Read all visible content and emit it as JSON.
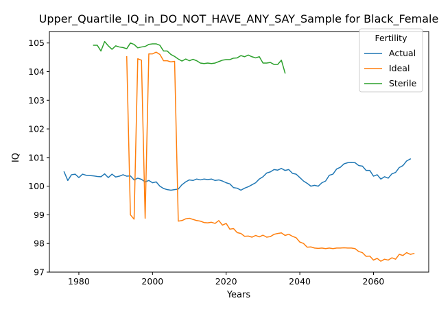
{
  "chart_data": {
    "type": "line",
    "title": "Upper_Quartile_IQ_in_DO_NOT_HAVE_ANY_SAY_Sample for Black_Female",
    "xlabel": "Years",
    "ylabel": "IQ",
    "xlim": [
      1972,
      2075
    ],
    "ylim": [
      97,
      105.4
    ],
    "xticks": [
      1980,
      2000,
      2020,
      2040,
      2060
    ],
    "yticks": [
      97,
      98,
      99,
      100,
      101,
      102,
      103,
      104,
      105
    ],
    "grid": false,
    "legend": {
      "title": "Fertility",
      "placement": "top-right"
    },
    "series": [
      {
        "name": "Actual",
        "color": "#1f77b4",
        "points": [
          [
            1976,
            100.5
          ],
          [
            1977,
            100.2
          ],
          [
            1978,
            100.4
          ],
          [
            1979,
            100.42
          ],
          [
            1980,
            100.3
          ],
          [
            1981,
            100.42
          ],
          [
            1982,
            100.38
          ],
          [
            1983,
            100.37
          ],
          [
            1984,
            100.36
          ],
          [
            1985,
            100.34
          ],
          [
            1986,
            100.33
          ],
          [
            1987,
            100.43
          ],
          [
            1988,
            100.3
          ],
          [
            1989,
            100.42
          ],
          [
            1990,
            100.32
          ],
          [
            1991,
            100.35
          ],
          [
            1992,
            100.4
          ],
          [
            1993,
            100.35
          ],
          [
            1994,
            100.36
          ],
          [
            1995,
            100.22
          ],
          [
            1996,
            100.28
          ],
          [
            1997,
            100.24
          ],
          [
            1998,
            100.15
          ],
          [
            1999,
            100.2
          ],
          [
            2000,
            100.12
          ],
          [
            2001,
            100.15
          ],
          [
            2002,
            100.0
          ],
          [
            2003,
            99.92
          ],
          [
            2004,
            99.88
          ],
          [
            2005,
            99.86
          ],
          [
            2006,
            99.88
          ],
          [
            2007,
            99.9
          ],
          [
            2008,
            100.05
          ],
          [
            2009,
            100.15
          ],
          [
            2010,
            100.22
          ],
          [
            2011,
            100.2
          ],
          [
            2012,
            100.25
          ],
          [
            2013,
            100.22
          ],
          [
            2014,
            100.25
          ],
          [
            2015,
            100.23
          ],
          [
            2016,
            100.25
          ],
          [
            2017,
            100.2
          ],
          [
            2018,
            100.22
          ],
          [
            2019,
            100.18
          ],
          [
            2020,
            100.12
          ],
          [
            2021,
            100.08
          ],
          [
            2022,
            99.95
          ],
          [
            2023,
            99.93
          ],
          [
            2024,
            99.86
          ],
          [
            2025,
            99.93
          ],
          [
            2026,
            99.98
          ],
          [
            2027,
            100.05
          ],
          [
            2028,
            100.12
          ],
          [
            2029,
            100.25
          ],
          [
            2030,
            100.33
          ],
          [
            2031,
            100.46
          ],
          [
            2032,
            100.5
          ],
          [
            2033,
            100.58
          ],
          [
            2034,
            100.56
          ],
          [
            2035,
            100.62
          ],
          [
            2036,
            100.55
          ],
          [
            2037,
            100.58
          ],
          [
            2038,
            100.45
          ],
          [
            2039,
            100.42
          ],
          [
            2040,
            100.3
          ],
          [
            2041,
            100.18
          ],
          [
            2042,
            100.1
          ],
          [
            2043,
            100.0
          ],
          [
            2044,
            100.03
          ],
          [
            2045,
            100.0
          ],
          [
            2046,
            100.12
          ],
          [
            2047,
            100.18
          ],
          [
            2048,
            100.38
          ],
          [
            2049,
            100.42
          ],
          [
            2050,
            100.6
          ],
          [
            2051,
            100.66
          ],
          [
            2052,
            100.78
          ],
          [
            2053,
            100.82
          ],
          [
            2054,
            100.83
          ],
          [
            2055,
            100.82
          ],
          [
            2056,
            100.72
          ],
          [
            2057,
            100.7
          ],
          [
            2058,
            100.55
          ],
          [
            2059,
            100.55
          ],
          [
            2060,
            100.35
          ],
          [
            2061,
            100.4
          ],
          [
            2062,
            100.25
          ],
          [
            2063,
            100.33
          ],
          [
            2064,
            100.28
          ],
          [
            2065,
            100.43
          ],
          [
            2066,
            100.48
          ],
          [
            2067,
            100.65
          ],
          [
            2068,
            100.72
          ],
          [
            2069,
            100.88
          ],
          [
            2070,
            100.95
          ]
        ]
      },
      {
        "name": "Ideal",
        "color": "#ff7f0e",
        "points": [
          [
            1993,
            104.52
          ],
          [
            1994,
            99.0
          ],
          [
            1995,
            98.85
          ],
          [
            1996,
            104.45
          ],
          [
            1997,
            104.4
          ],
          [
            1998,
            98.88
          ],
          [
            1999,
            104.62
          ],
          [
            2000,
            104.62
          ],
          [
            2001,
            104.68
          ],
          [
            2002,
            104.6
          ],
          [
            2003,
            104.38
          ],
          [
            2004,
            104.38
          ],
          [
            2005,
            104.34
          ],
          [
            2006,
            104.36
          ],
          [
            2007,
            98.78
          ],
          [
            2008,
            98.8
          ],
          [
            2009,
            98.86
          ],
          [
            2010,
            98.88
          ],
          [
            2011,
            98.84
          ],
          [
            2012,
            98.8
          ],
          [
            2013,
            98.78
          ],
          [
            2014,
            98.73
          ],
          [
            2015,
            98.72
          ],
          [
            2016,
            98.74
          ],
          [
            2017,
            98.7
          ],
          [
            2018,
            98.8
          ],
          [
            2019,
            98.64
          ],
          [
            2020,
            98.7
          ],
          [
            2021,
            98.5
          ],
          [
            2022,
            98.52
          ],
          [
            2023,
            98.38
          ],
          [
            2024,
            98.35
          ],
          [
            2025,
            98.25
          ],
          [
            2026,
            98.26
          ],
          [
            2027,
            98.22
          ],
          [
            2028,
            98.28
          ],
          [
            2029,
            98.23
          ],
          [
            2030,
            98.29
          ],
          [
            2031,
            98.22
          ],
          [
            2032,
            98.24
          ],
          [
            2033,
            98.32
          ],
          [
            2034,
            98.35
          ],
          [
            2035,
            98.37
          ],
          [
            2036,
            98.28
          ],
          [
            2037,
            98.32
          ],
          [
            2038,
            98.25
          ],
          [
            2039,
            98.2
          ],
          [
            2040,
            98.05
          ],
          [
            2041,
            98.0
          ],
          [
            2042,
            97.87
          ],
          [
            2043,
            97.88
          ],
          [
            2044,
            97.84
          ],
          [
            2045,
            97.83
          ],
          [
            2046,
            97.84
          ],
          [
            2047,
            97.82
          ],
          [
            2048,
            97.84
          ],
          [
            2049,
            97.82
          ],
          [
            2050,
            97.84
          ],
          [
            2051,
            97.84
          ],
          [
            2052,
            97.85
          ],
          [
            2053,
            97.84
          ],
          [
            2054,
            97.84
          ],
          [
            2055,
            97.82
          ],
          [
            2056,
            97.72
          ],
          [
            2057,
            97.68
          ],
          [
            2058,
            97.55
          ],
          [
            2059,
            97.56
          ],
          [
            2060,
            97.42
          ],
          [
            2061,
            97.48
          ],
          [
            2062,
            97.38
          ],
          [
            2063,
            97.45
          ],
          [
            2064,
            97.42
          ],
          [
            2065,
            97.5
          ],
          [
            2066,
            97.45
          ],
          [
            2067,
            97.62
          ],
          [
            2068,
            97.58
          ],
          [
            2069,
            97.68
          ],
          [
            2070,
            97.62
          ],
          [
            2071,
            97.65
          ]
        ]
      },
      {
        "name": "Sterile",
        "color": "#2ca02c",
        "points": [
          [
            1984,
            104.92
          ],
          [
            1985,
            104.92
          ],
          [
            1986,
            104.72
          ],
          [
            1987,
            105.05
          ],
          [
            1988,
            104.9
          ],
          [
            1989,
            104.78
          ],
          [
            1990,
            104.9
          ],
          [
            1991,
            104.86
          ],
          [
            1992,
            104.84
          ],
          [
            1993,
            104.8
          ],
          [
            1994,
            105.0
          ],
          [
            1995,
            104.95
          ],
          [
            1996,
            104.83
          ],
          [
            1997,
            104.86
          ],
          [
            1998,
            104.88
          ],
          [
            1999,
            104.95
          ],
          [
            2000,
            104.97
          ],
          [
            2001,
            104.97
          ],
          [
            2002,
            104.92
          ],
          [
            2003,
            104.72
          ],
          [
            2004,
            104.72
          ],
          [
            2005,
            104.6
          ],
          [
            2006,
            104.53
          ],
          [
            2007,
            104.44
          ],
          [
            2008,
            104.37
          ],
          [
            2009,
            104.44
          ],
          [
            2010,
            104.38
          ],
          [
            2011,
            104.43
          ],
          [
            2012,
            104.38
          ],
          [
            2013,
            104.3
          ],
          [
            2014,
            104.28
          ],
          [
            2015,
            104.3
          ],
          [
            2016,
            104.28
          ],
          [
            2017,
            104.3
          ],
          [
            2018,
            104.35
          ],
          [
            2019,
            104.4
          ],
          [
            2020,
            104.42
          ],
          [
            2021,
            104.42
          ],
          [
            2022,
            104.47
          ],
          [
            2023,
            104.48
          ],
          [
            2024,
            104.56
          ],
          [
            2025,
            104.52
          ],
          [
            2026,
            104.58
          ],
          [
            2027,
            104.52
          ],
          [
            2028,
            104.48
          ],
          [
            2029,
            104.52
          ],
          [
            2030,
            104.3
          ],
          [
            2031,
            104.3
          ],
          [
            2032,
            104.32
          ],
          [
            2033,
            104.25
          ],
          [
            2034,
            104.25
          ],
          [
            2035,
            104.4
          ],
          [
            2036,
            103.95
          ]
        ]
      }
    ]
  }
}
